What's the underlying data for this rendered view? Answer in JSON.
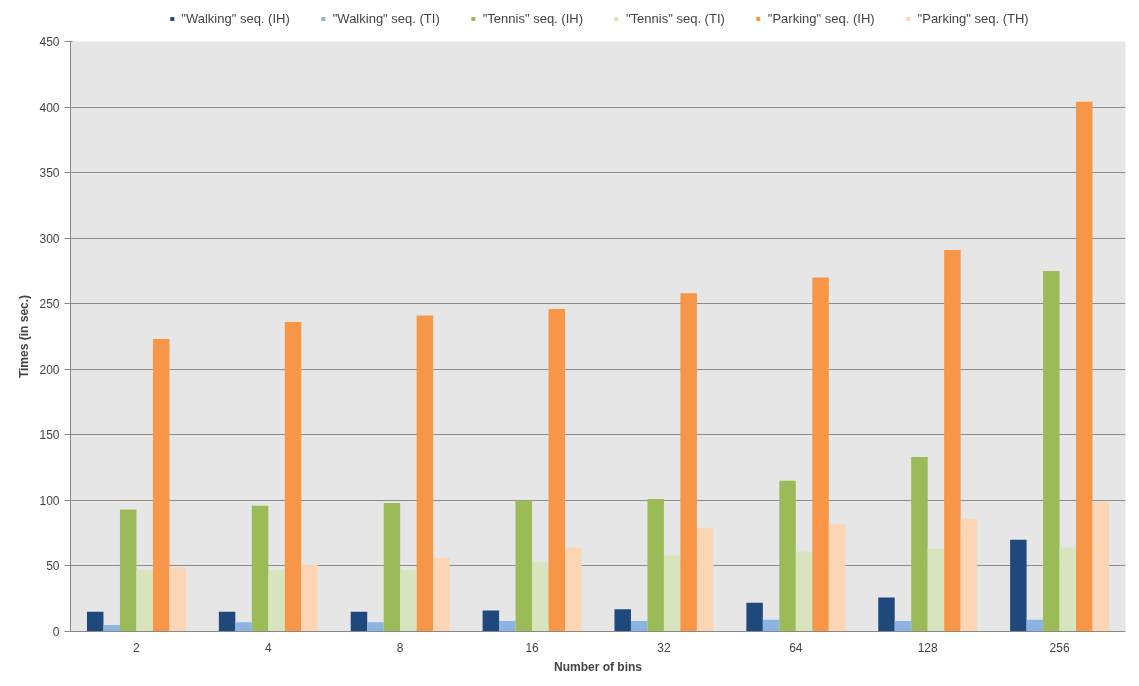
{
  "chart_data": {
    "type": "bar",
    "xlabel": "Number of bins",
    "ylabel": "Times (in sec.)",
    "categories": [
      "2",
      "4",
      "8",
      "16",
      "32",
      "64",
      "128",
      "256"
    ],
    "series": [
      {
        "name": "\"Walking\" seq. (IH)",
        "color": "#1f497d",
        "values": [
          15,
          15,
          15,
          16,
          17,
          22,
          26,
          70
        ]
      },
      {
        "name": "\"Walking\" seq. (TI)",
        "color": "#8db3e2",
        "values": [
          5,
          7,
          7,
          8,
          8,
          9,
          8,
          9
        ]
      },
      {
        "name": "\"Tennis\" seq. (IH)",
        "color": "#9bbb59",
        "values": [
          93,
          96,
          98,
          100,
          101,
          115,
          133,
          275
        ]
      },
      {
        "name": "\"Tennis\" seq. (TI)",
        "color": "#d7e4bd",
        "values": [
          47,
          47,
          47,
          53,
          58,
          61,
          63,
          64
        ]
      },
      {
        "name": "\"Parking\" seq. (IH)",
        "color": "#f79646",
        "values": [
          223,
          236,
          241,
          246,
          258,
          270,
          291,
          404
        ]
      },
      {
        "name": "\"Parking\" seq. (TH)",
        "color": "#fcd5b4",
        "values": [
          49,
          51,
          56,
          64,
          79,
          82,
          86,
          99
        ]
      }
    ],
    "ylim": [
      0,
      450
    ],
    "yticks": [
      0,
      50,
      100,
      150,
      200,
      250,
      300,
      350,
      400,
      450
    ],
    "grid": "y",
    "legend": "top"
  }
}
